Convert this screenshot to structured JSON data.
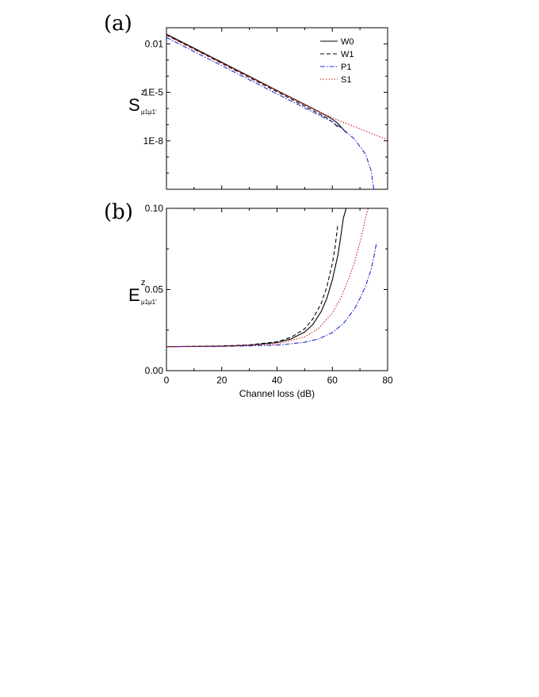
{
  "chart_data": [
    {
      "panel": "(a)",
      "type": "line",
      "xlim": [
        0,
        80
      ],
      "yscale": "log",
      "ylim": [
        1e-11,
        0.1
      ],
      "yticks": [
        "0.01",
        "1E-5",
        "1E-8"
      ],
      "ylabel": {
        "main": "S",
        "sup": "z",
        "sub": "μ1μ1'"
      },
      "legend_position": "top-right",
      "grid": false,
      "series": [
        {
          "name": "W0",
          "color": "#000000",
          "dash": "solid",
          "x": [
            0,
            10,
            20,
            30,
            40,
            50,
            55,
            58,
            60,
            62,
            64,
            65
          ],
          "y": [
            0.04,
            0.0054,
            0.00073,
            9.8e-05,
            1.3e-05,
            1.8e-06,
            6.5e-07,
            3.5e-07,
            2.2e-07,
            1.2e-07,
            5e-08,
            3.2e-08
          ]
        },
        {
          "name": "W1",
          "color": "#000000",
          "dash": "dashed",
          "x": [
            0,
            10,
            20,
            30,
            40,
            50,
            55,
            58,
            60,
            62
          ],
          "y": [
            0.035,
            0.0047,
            0.00062,
            8.2e-05,
            1.1e-05,
            1.4e-06,
            5e-07,
            2.6e-07,
            1.5e-07,
            7e-08
          ]
        },
        {
          "name": "P1",
          "color": "#1f2fd1",
          "dash": "dashdot",
          "x": [
            0,
            10,
            20,
            30,
            40,
            50,
            55,
            60,
            64,
            68,
            72,
            74,
            75
          ],
          "y": [
            0.025,
            0.0033,
            0.00045,
            6e-05,
            8e-06,
            1.1e-06,
            4e-07,
            1.5e-07,
            5e-08,
            1.3e-08,
            1.5e-09,
            1.5e-10,
            1e-11
          ]
        },
        {
          "name": "S1",
          "color": "#e01010",
          "dash": "dotted",
          "x": [
            0,
            10,
            20,
            30,
            40,
            50,
            55,
            60,
            65,
            70,
            75,
            80
          ],
          "y": [
            0.035,
            0.0048,
            0.00066,
            9e-05,
            1.25e-05,
            1.7e-06,
            6.5e-07,
            2.7e-07,
            1.2e-07,
            5.5e-08,
            2.5e-08,
            1.2e-08
          ]
        }
      ]
    },
    {
      "panel": "(b)",
      "type": "line",
      "xlim": [
        0,
        80
      ],
      "ylim": [
        0.0,
        0.1
      ],
      "xticks": [
        0,
        20,
        40,
        60,
        80
      ],
      "yticks": [
        "0.00",
        "0.05",
        "0.10"
      ],
      "xlabel": "Channel loss (dB)",
      "ylabel": {
        "main": "E",
        "sup": "z",
        "sub": "μ1μ1'"
      },
      "grid": false,
      "series": [
        {
          "name": "W0",
          "color": "#000000",
          "dash": "solid",
          "x": [
            0,
            20,
            30,
            40,
            45,
            50,
            53,
            56,
            58,
            60,
            62,
            63,
            64,
            65
          ],
          "y": [
            0.0148,
            0.0151,
            0.0157,
            0.0173,
            0.0195,
            0.0238,
            0.0285,
            0.0365,
            0.0445,
            0.056,
            0.071,
            0.082,
            0.094,
            0.1
          ]
        },
        {
          "name": "W1",
          "color": "#000000",
          "dash": "dashed",
          "x": [
            0,
            20,
            30,
            40,
            45,
            50,
            53,
            56,
            58,
            60,
            61,
            62
          ],
          "y": [
            0.0148,
            0.0152,
            0.0159,
            0.0178,
            0.0205,
            0.0258,
            0.032,
            0.0415,
            0.0515,
            0.066,
            0.076,
            0.09
          ]
        },
        {
          "name": "P1",
          "color": "#1f2fd1",
          "dash": "dashdot",
          "x": [
            0,
            20,
            40,
            50,
            55,
            60,
            64,
            68,
            70,
            72,
            74,
            75,
            76
          ],
          "y": [
            0.0148,
            0.0149,
            0.0157,
            0.0175,
            0.0195,
            0.0235,
            0.029,
            0.038,
            0.0445,
            0.052,
            0.062,
            0.07,
            0.079
          ]
        },
        {
          "name": "S1",
          "color": "#e01010",
          "dash": "dotted",
          "x": [
            0,
            20,
            40,
            50,
            55,
            60,
            63,
            66,
            68,
            70,
            71,
            72,
            73
          ],
          "y": [
            0.0148,
            0.015,
            0.0165,
            0.0208,
            0.026,
            0.0355,
            0.0445,
            0.057,
            0.0665,
            0.079,
            0.086,
            0.094,
            0.1
          ]
        }
      ]
    }
  ]
}
